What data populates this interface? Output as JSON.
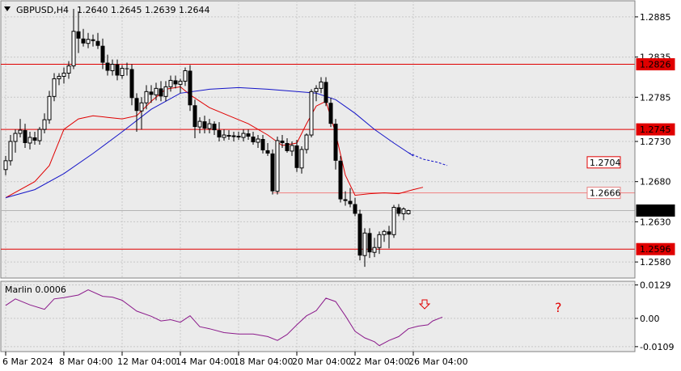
{
  "header": {
    "title": "GBPUSD,H4",
    "ohlc": "1.2640 1.2645 1.2639 1.2644"
  },
  "indicator": {
    "label": "Marlin 0.0006",
    "question_mark": "?"
  },
  "colors": {
    "background": "#ffffff",
    "plot_bg": "#ebebeb",
    "grid": "#c8c8c8",
    "candle": "#000000",
    "level_line": "#e00000",
    "red_ma": "#e00000",
    "blue_ma": "#1414c8",
    "marlin": "#8b1a8b",
    "last_price_bg": "#000000"
  },
  "chart_data": {
    "type": "candlestick",
    "symbol": "GBPUSD",
    "timeframe": "H4",
    "price_axis": {
      "range": [
        1.256,
        1.2905
      ],
      "ticks": [
        "1.2885",
        "1.2835",
        "1.2785",
        "1.2730",
        "1.2680",
        "1.2630",
        "1.2580"
      ],
      "tick_values": [
        1.2885,
        1.2835,
        1.2785,
        1.273,
        1.268,
        1.263,
        1.258
      ]
    },
    "time_axis": {
      "labels": [
        "6 Mar 2024",
        "8 Mar 04:00",
        "12 Mar 04:00",
        "14 Mar 04:00",
        "18 Mar 04:00",
        "20 Mar 04:00",
        "22 Mar 04:00",
        "26 Mar 04:00"
      ],
      "label_bar_index": [
        0,
        12,
        24,
        36,
        48,
        60,
        72,
        84
      ]
    },
    "horizontal_levels": [
      {
        "value": 1.2826,
        "label": "1.2826",
        "style": "solid-box"
      },
      {
        "value": 1.2745,
        "label": "1.2745",
        "style": "solid-box"
      },
      {
        "value": 1.2596,
        "label": "1.2596",
        "style": "solid-box"
      }
    ],
    "target_labels": [
      {
        "value": 1.2704,
        "label": "1.2704"
      },
      {
        "value": 1.2666,
        "label": "1.2666"
      }
    ],
    "level_1_2666_start_bar": 55,
    "last_price": {
      "value": 1.2644,
      "label": "1.2644"
    },
    "candles": [
      [
        1.2695,
        1.2712,
        1.2688,
        1.2706
      ],
      [
        1.2706,
        1.2738,
        1.27,
        1.273
      ],
      [
        1.273,
        1.2745,
        1.2716,
        1.274
      ],
      [
        1.274,
        1.2758,
        1.2735,
        1.2744
      ],
      [
        1.2744,
        1.2752,
        1.2722,
        1.2728
      ],
      [
        1.2728,
        1.2742,
        1.272,
        1.2735
      ],
      [
        1.2735,
        1.2742,
        1.2726,
        1.2731
      ],
      [
        1.2731,
        1.2748,
        1.2726,
        1.2745
      ],
      [
        1.2745,
        1.2765,
        1.274,
        1.2757
      ],
      [
        1.2757,
        1.2793,
        1.2752,
        1.2786
      ],
      [
        1.2786,
        1.2815,
        1.278,
        1.2808
      ],
      [
        1.2808,
        1.2815,
        1.28,
        1.2811
      ],
      [
        1.2811,
        1.2822,
        1.2802,
        1.2815
      ],
      [
        1.2815,
        1.283,
        1.2808,
        1.2824
      ],
      [
        1.2824,
        1.2895,
        1.282,
        1.2867
      ],
      [
        1.2867,
        1.2892,
        1.284,
        1.2858
      ],
      [
        1.2858,
        1.287,
        1.2848,
        1.2852
      ],
      [
        1.2852,
        1.2865,
        1.2846,
        1.2857
      ],
      [
        1.2857,
        1.2863,
        1.2848,
        1.2855
      ],
      [
        1.2855,
        1.2865,
        1.2845,
        1.2849
      ],
      [
        1.2849,
        1.2858,
        1.282,
        1.2828
      ],
      [
        1.2828,
        1.2838,
        1.2812,
        1.2818
      ],
      [
        1.2818,
        1.2832,
        1.2812,
        1.2826
      ],
      [
        1.2826,
        1.2832,
        1.2806,
        1.2812
      ],
      [
        1.2812,
        1.2825,
        1.2808,
        1.2821
      ],
      [
        1.2821,
        1.2828,
        1.2812,
        1.282
      ],
      [
        1.282,
        1.2826,
        1.2775,
        1.2784
      ],
      [
        1.2784,
        1.279,
        1.2742,
        1.2768
      ],
      [
        1.2768,
        1.2785,
        1.2745,
        1.2778
      ],
      [
        1.2778,
        1.28,
        1.277,
        1.2792
      ],
      [
        1.2792,
        1.28,
        1.2778,
        1.2788
      ],
      [
        1.2788,
        1.2803,
        1.2781,
        1.2796
      ],
      [
        1.2796,
        1.2805,
        1.278,
        1.2786
      ],
      [
        1.2786,
        1.2805,
        1.278,
        1.2798
      ],
      [
        1.2798,
        1.2812,
        1.2792,
        1.2806
      ],
      [
        1.2806,
        1.2812,
        1.2796,
        1.2801
      ],
      [
        1.2801,
        1.2808,
        1.279,
        1.2805
      ],
      [
        1.2805,
        1.2822,
        1.2799,
        1.2818
      ],
      [
        1.2818,
        1.2825,
        1.2768,
        1.2775
      ],
      [
        1.2775,
        1.2782,
        1.2734,
        1.2748
      ],
      [
        1.2748,
        1.276,
        1.274,
        1.2755
      ],
      [
        1.2755,
        1.2762,
        1.274,
        1.2746
      ],
      [
        1.2746,
        1.2758,
        1.274,
        1.2752
      ],
      [
        1.2752,
        1.2755,
        1.2738,
        1.2744
      ],
      [
        1.2744,
        1.2754,
        1.273,
        1.2735
      ],
      [
        1.2735,
        1.2745,
        1.2731,
        1.2738
      ],
      [
        1.2738,
        1.2744,
        1.2732,
        1.2736
      ],
      [
        1.2736,
        1.2742,
        1.273,
        1.2737
      ],
      [
        1.2737,
        1.2742,
        1.2732,
        1.2735
      ],
      [
        1.2735,
        1.2745,
        1.273,
        1.274
      ],
      [
        1.274,
        1.2745,
        1.2732,
        1.2736
      ],
      [
        1.2736,
        1.2742,
        1.2726,
        1.2729
      ],
      [
        1.2729,
        1.2738,
        1.2722,
        1.2733
      ],
      [
        1.2733,
        1.2738,
        1.2715,
        1.2719
      ],
      [
        1.2719,
        1.2728,
        1.2712,
        1.2715
      ],
      [
        1.2715,
        1.272,
        1.2664,
        1.2668
      ],
      [
        1.2668,
        1.2736,
        1.2664,
        1.2731
      ],
      [
        1.2731,
        1.2738,
        1.2722,
        1.2728
      ],
      [
        1.2728,
        1.2734,
        1.2716,
        1.2718
      ],
      [
        1.2718,
        1.273,
        1.2712,
        1.2725
      ],
      [
        1.2725,
        1.2732,
        1.2692,
        1.2697
      ],
      [
        1.2697,
        1.2724,
        1.269,
        1.272
      ],
      [
        1.272,
        1.274,
        1.2715,
        1.2738
      ],
      [
        1.2738,
        1.2795,
        1.2735,
        1.2792
      ],
      [
        1.2792,
        1.28,
        1.278,
        1.2796
      ],
      [
        1.2796,
        1.281,
        1.279,
        1.2804
      ],
      [
        1.2804,
        1.281,
        1.2774,
        1.2778
      ],
      [
        1.2778,
        1.2784,
        1.2748,
        1.2752
      ],
      [
        1.2752,
        1.2758,
        1.2695,
        1.2706
      ],
      [
        1.2706,
        1.2712,
        1.2654,
        1.2658
      ],
      [
        1.2658,
        1.2668,
        1.265,
        1.2656
      ],
      [
        1.2656,
        1.2672,
        1.2648,
        1.2652
      ],
      [
        1.2652,
        1.266,
        1.2637,
        1.264
      ],
      [
        1.264,
        1.2645,
        1.2582,
        1.2588
      ],
      [
        1.2588,
        1.2622,
        1.2574,
        1.2616
      ],
      [
        1.2616,
        1.2622,
        1.2585,
        1.2592
      ],
      [
        1.2592,
        1.261,
        1.2586,
        1.2598
      ],
      [
        1.2598,
        1.2618,
        1.259,
        1.2614
      ],
      [
        1.2614,
        1.262,
        1.2605,
        1.2618
      ],
      [
        1.2618,
        1.2625,
        1.2597,
        1.2614
      ],
      [
        1.2614,
        1.2651,
        1.261,
        1.2648
      ],
      [
        1.2648,
        1.2652,
        1.2637,
        1.264
      ],
      [
        1.264,
        1.2648,
        1.2632,
        1.2646
      ],
      [
        1.264,
        1.2645,
        1.2639,
        1.2644
      ]
    ],
    "series": [
      {
        "type": "line",
        "color": "red",
        "values_at_bars": [
          [
            0,
            1.266
          ],
          [
            6,
            1.268
          ],
          [
            9,
            1.27
          ],
          [
            12,
            1.2745
          ],
          [
            15,
            1.2758
          ],
          [
            18,
            1.2762
          ],
          [
            21,
            1.276
          ],
          [
            24,
            1.2758
          ],
          [
            27,
            1.2762
          ],
          [
            30,
            1.278
          ],
          [
            33,
            1.2795
          ],
          [
            36,
            1.2798
          ],
          [
            38,
            1.2788
          ],
          [
            42,
            1.2772
          ],
          [
            46,
            1.2762
          ],
          [
            50,
            1.2752
          ],
          [
            54,
            1.2738
          ],
          [
            57,
            1.2725
          ],
          [
            60,
            1.2728
          ],
          [
            62,
            1.2752
          ],
          [
            64,
            1.2774
          ],
          [
            66,
            1.278
          ],
          [
            68,
            1.274
          ],
          [
            70,
            1.2688
          ],
          [
            72,
            1.2663
          ],
          [
            75,
            1.2665
          ],
          [
            78,
            1.2666
          ],
          [
            81,
            1.2665
          ],
          [
            84,
            1.267
          ],
          [
            86,
            1.2673
          ]
        ]
      },
      {
        "type": "line",
        "color": "blue",
        "values_at_bars": [
          [
            0,
            1.266
          ],
          [
            6,
            1.267
          ],
          [
            12,
            1.269
          ],
          [
            18,
            1.2715
          ],
          [
            24,
            1.2742
          ],
          [
            30,
            1.277
          ],
          [
            36,
            1.279
          ],
          [
            42,
            1.2795
          ],
          [
            48,
            1.2797
          ],
          [
            54,
            1.2795
          ],
          [
            60,
            1.2792
          ],
          [
            64,
            1.279
          ],
          [
            68,
            1.2782
          ],
          [
            72,
            1.2765
          ],
          [
            76,
            1.2745
          ],
          [
            80,
            1.2728
          ],
          [
            84,
            1.2712
          ]
        ],
        "dashed_from_bar": 83,
        "dashed_values_at_bars": [
          [
            83,
            1.2716
          ],
          [
            86,
            1.2708
          ],
          [
            89,
            1.2704
          ],
          [
            91,
            1.27
          ]
        ]
      },
      {
        "type": "oscillator",
        "name": "Marlin",
        "range": [
          -0.0125,
          0.014
        ],
        "ticks": [
          "0.0129",
          "0.00",
          "-0.0109"
        ],
        "tick_values": [
          0.0129,
          0.0,
          -0.0109
        ],
        "values_at_bars": [
          [
            0,
            0.005
          ],
          [
            2,
            0.0075
          ],
          [
            5,
            0.0052
          ],
          [
            8,
            0.0035
          ],
          [
            10,
            0.0075
          ],
          [
            12,
            0.008
          ],
          [
            15,
            0.009
          ],
          [
            17,
            0.011
          ],
          [
            20,
            0.0085
          ],
          [
            22,
            0.0082
          ],
          [
            24,
            0.007
          ],
          [
            27,
            0.0028
          ],
          [
            30,
            0.0008
          ],
          [
            32,
            -0.001
          ],
          [
            34,
            -0.0005
          ],
          [
            36,
            -0.0015
          ],
          [
            38,
            0.001
          ],
          [
            40,
            -0.0032
          ],
          [
            42,
            -0.004
          ],
          [
            45,
            -0.0055
          ],
          [
            48,
            -0.006
          ],
          [
            51,
            -0.006
          ],
          [
            54,
            -0.007
          ],
          [
            56,
            -0.0085
          ],
          [
            58,
            -0.0062
          ],
          [
            60,
            -0.0025
          ],
          [
            62,
            0.001
          ],
          [
            64,
            0.003
          ],
          [
            66,
            0.0078
          ],
          [
            68,
            0.0065
          ],
          [
            70,
            0.001
          ],
          [
            72,
            -0.005
          ],
          [
            74,
            -0.0075
          ],
          [
            76,
            -0.009
          ],
          [
            77,
            -0.0105
          ],
          [
            79,
            -0.0085
          ],
          [
            81,
            -0.007
          ],
          [
            83,
            -0.004
          ],
          [
            85,
            -0.003
          ],
          [
            87,
            -0.0025
          ],
          [
            88,
            -0.001
          ],
          [
            90,
            0.0005
          ]
        ]
      }
    ],
    "annotations": [
      {
        "type": "arrow-down",
        "color": "red",
        "at_bar": 89
      },
      {
        "type": "text",
        "text": "?",
        "color": "red",
        "at_bar": 91
      }
    ]
  }
}
